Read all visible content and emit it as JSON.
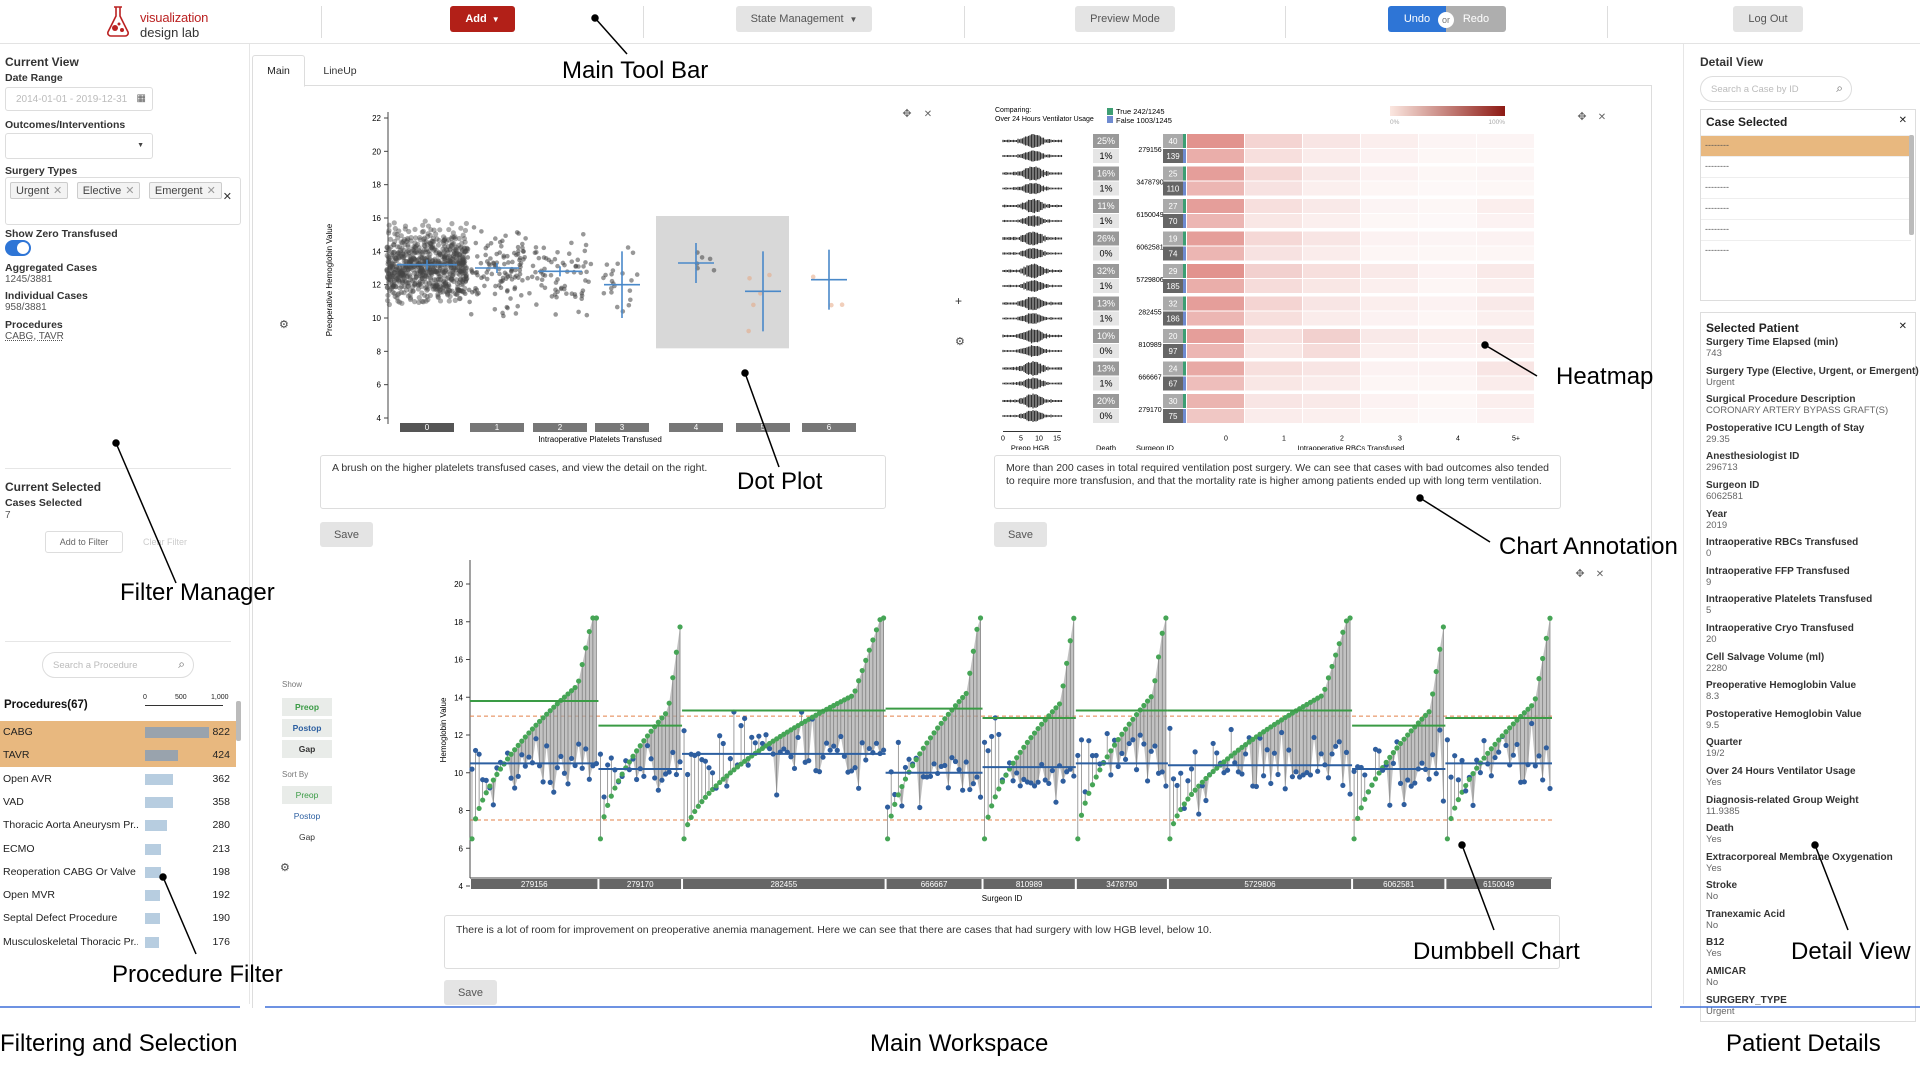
{
  "logo": {
    "line1": "visualization",
    "line2": "design lab"
  },
  "toolbar": {
    "add": "Add",
    "state": "State Management",
    "preview": "Preview Mode",
    "undo": "Undo",
    "or": "or",
    "redo": "Redo",
    "logout": "Log Out"
  },
  "filter": {
    "current_view": "Current View",
    "date_range_label": "Date Range",
    "date_range_value": "2014-01-01 - 2019-12-31",
    "outcomes_label": "Outcomes/Interventions",
    "surgery_types_label": "Surgery Types",
    "tags": [
      "Urgent",
      "Elective",
      "Emergent"
    ],
    "show_zero": "Show Zero Transfused",
    "agg_label": "Aggregated Cases",
    "agg_value": "1245/3881",
    "ind_label": "Individual Cases",
    "ind_value": "958/3881",
    "proc_label": "Procedures",
    "proc_value": "CABG, TAVR",
    "current_selected": "Current Selected",
    "cases_selected_label": "Cases Selected",
    "cases_selected_value": "7",
    "add_filter": "Add to Filter",
    "clear_filter": "Clear Filter"
  },
  "procedures": {
    "search_placeholder": "Search a Procedure",
    "title": "Procedures(67)",
    "axis": [
      "0",
      "500",
      "1,000"
    ],
    "items": [
      {
        "name": "CABG",
        "count": "822",
        "pct": 0.82,
        "sel": true
      },
      {
        "name": "TAVR",
        "count": "424",
        "pct": 0.42,
        "sel": true
      },
      {
        "name": "Open AVR",
        "count": "362",
        "pct": 0.36,
        "sel": false
      },
      {
        "name": "VAD",
        "count": "358",
        "pct": 0.36,
        "sel": false
      },
      {
        "name": "Thoracic Aorta Aneurysm Pr...",
        "count": "280",
        "pct": 0.28,
        "sel": false
      },
      {
        "name": "ECMO",
        "count": "213",
        "pct": 0.21,
        "sel": false
      },
      {
        "name": "Reoperation CABG Or Valve ...",
        "count": "198",
        "pct": 0.2,
        "sel": false
      },
      {
        "name": "Open MVR",
        "count": "192",
        "pct": 0.19,
        "sel": false
      },
      {
        "name": "Septal Defect Procedure",
        "count": "190",
        "pct": 0.19,
        "sel": false
      },
      {
        "name": "Musculoskeletal Thoracic Pr...",
        "count": "176",
        "pct": 0.18,
        "sel": false
      }
    ]
  },
  "tabs": [
    "Main",
    "LineUp"
  ],
  "dotplot": {
    "xlabel": "Intraoperative Platelets Transfused",
    "ylabel": "Preoperative Hemoglobin Value",
    "yticks": [
      "4",
      "6",
      "8",
      "10",
      "12",
      "14",
      "16",
      "18",
      "20",
      "22"
    ],
    "xticks": [
      "0",
      "1",
      "2",
      "3",
      "4",
      "5",
      "6"
    ],
    "annotation": "A brush on the higher platelets transfused cases, and view the detail on the right.",
    "save": "Save"
  },
  "heatmap": {
    "comparing": "Comparing:",
    "comparing2": "Over 24 Hours Ventilator Usage",
    "true_leg": "True 242/1245",
    "false_leg": "False 1003/1245",
    "scale_min": "0%",
    "scale_max": "100%",
    "col_labels": [
      "Preop HGB",
      "Death",
      "Surgeon ID",
      "Intraoperative RBCs Transfused"
    ],
    "x_ticks": [
      "0",
      "5",
      "10",
      "15"
    ],
    "rbc_ticks": [
      "0",
      "1",
      "2",
      "3",
      "4",
      "5+"
    ],
    "rows": [
      {
        "id": "279156",
        "d1": "25%",
        "d2": "1%",
        "c1": "40",
        "c2": "139"
      },
      {
        "id": "3478790",
        "d1": "16%",
        "d2": "1%",
        "c1": "25",
        "c2": "110"
      },
      {
        "id": "6150049",
        "d1": "11%",
        "d2": "1%",
        "c1": "27",
        "c2": "70"
      },
      {
        "id": "6062581",
        "d1": "26%",
        "d2": "0%",
        "c1": "19",
        "c2": "74"
      },
      {
        "id": "5729806",
        "d1": "32%",
        "d2": "1%",
        "c1": "29",
        "c2": "185"
      },
      {
        "id": "282455",
        "d1": "13%",
        "d2": "1%",
        "c1": "32",
        "c2": "186"
      },
      {
        "id": "810989",
        "d1": "10%",
        "d2": "0%",
        "c1": "20",
        "c2": "97"
      },
      {
        "id": "666667",
        "d1": "13%",
        "d2": "1%",
        "c1": "24",
        "c2": "67"
      },
      {
        "id": "279170",
        "d1": "20%",
        "d2": "0%",
        "c1": "30",
        "c2": "75"
      }
    ],
    "annotation": "More than 200 cases in total required ventilation post surgery. We can see that cases with bad outcomes also tended to require more transfusion, and that the mortality rate is higher among patients ended up with long term ventilation.",
    "save": "Save"
  },
  "dumbbell": {
    "show_label": "Show",
    "show_opts": [
      "Preop",
      "Postop",
      "Gap"
    ],
    "sort_label": "Sort By",
    "sort_opts": [
      "Preop",
      "Postop",
      "Gap"
    ],
    "ylabel": "Hemoglobin Value",
    "xlabel": "Surgeon ID",
    "yticks": [
      "4",
      "6",
      "8",
      "10",
      "12",
      "14",
      "16",
      "18",
      "20"
    ],
    "surgeons": [
      "279156",
      "279170",
      "282455",
      "666667",
      "810989",
      "3478790",
      "5729806",
      "6062581",
      "6150049"
    ],
    "annotation": "There is a lot of room for improvement on preoperative anemia management. Here we can see that there are cases that had surgery with low HGB level, below 10.",
    "save": "Save"
  },
  "detail": {
    "title": "Detail View",
    "search_placeholder": "Search a Case by ID",
    "case_selected": "Case Selected",
    "case_items": [
      "--------",
      "--------",
      "--------",
      "--------",
      "--------",
      "--------"
    ],
    "selected_patient": "Selected Patient",
    "fields": [
      {
        "label": "Surgery Time Elapsed (min)",
        "value": "743"
      },
      {
        "label": "Surgery Type (Elective, Urgent, or Emergent)",
        "value": "Urgent"
      },
      {
        "label": "Surgical Procedure Description",
        "value": "CORONARY ARTERY BYPASS GRAFT(S)"
      },
      {
        "label": "Postoperative ICU Length of Stay",
        "value": "29.35"
      },
      {
        "label": "Anesthesiologist ID",
        "value": "296713"
      },
      {
        "label": "Surgeon ID",
        "value": "6062581"
      },
      {
        "label": "Year",
        "value": "2019"
      },
      {
        "label": "Intraoperative RBCs Transfused",
        "value": "0"
      },
      {
        "label": "Intraoperative FFP Transfused",
        "value": "9"
      },
      {
        "label": "Intraoperative Platelets Transfused",
        "value": "5"
      },
      {
        "label": "Intraoperative Cryo Transfused",
        "value": "20"
      },
      {
        "label": "Cell Salvage Volume (ml)",
        "value": "2280"
      },
      {
        "label": "Preoperative Hemoglobin Value",
        "value": "8.3"
      },
      {
        "label": "Postoperative Hemoglobin Value",
        "value": "9.5"
      },
      {
        "label": "Quarter",
        "value": "19/2"
      },
      {
        "label": "Over 24 Hours Ventilator Usage",
        "value": "Yes"
      },
      {
        "label": "Diagnosis-related Group Weight",
        "value": "11.9385"
      },
      {
        "label": "Death",
        "value": "Yes"
      },
      {
        "label": "Extracorporeal Membrane Oxygenation",
        "value": "Yes"
      },
      {
        "label": "Stroke",
        "value": "No"
      },
      {
        "label": "Tranexamic Acid",
        "value": "No"
      },
      {
        "label": "B12",
        "value": "Yes"
      },
      {
        "label": "AMICAR",
        "value": "No"
      },
      {
        "label": "SURGERY_TYPE",
        "value": "Urgent"
      }
    ]
  },
  "callouts": {
    "toolbar": "Main Tool Bar",
    "dotplot": "Dot Plot",
    "heatmap": "Heatmap",
    "annotation": "Chart Annotation",
    "filter": "Filter Manager",
    "procfilter": "Procedure Filter",
    "dumbbell": "Dumbbell Chart",
    "detail": "Detail View"
  },
  "sections": {
    "left": "Filtering and Selection",
    "mid": "Main Workspace",
    "right": "Patient Details"
  }
}
